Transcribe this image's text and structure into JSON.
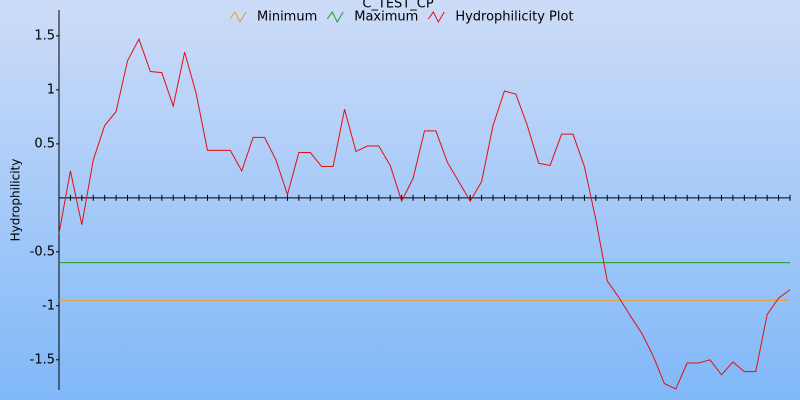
{
  "chart_data": {
    "type": "line",
    "title": "C_TEST_CP",
    "ylabel": "Hydrophilicity",
    "ylim": [
      -1.78,
      1.74
    ],
    "yticks": [
      -1.5,
      -1,
      -0.5,
      0.5,
      1,
      1.5
    ],
    "series": [
      {
        "name": "Minimum",
        "color": "#e8a030",
        "level": -0.95
      },
      {
        "name": "Maximum",
        "color": "#20a020",
        "level": -0.6
      },
      {
        "name": "Hydrophilicity Plot",
        "color": "#e01010",
        "values": [
          -0.33,
          0.25,
          -0.25,
          0.35,
          0.67,
          0.8,
          1.27,
          1.47,
          1.17,
          1.16,
          0.85,
          1.35,
          0.97,
          0.44,
          0.44,
          0.44,
          0.25,
          0.56,
          0.56,
          0.35,
          0.03,
          0.42,
          0.42,
          0.29,
          0.29,
          0.82,
          0.43,
          0.48,
          0.48,
          0.3,
          -0.03,
          0.18,
          0.62,
          0.62,
          0.33,
          0.15,
          -0.03,
          0.15,
          0.67,
          0.99,
          0.96,
          0.67,
          0.32,
          0.3,
          0.59,
          0.59,
          0.29,
          -0.2,
          -0.77,
          -0.92,
          -1.09,
          -1.25,
          -1.46,
          -1.72,
          -1.77,
          -1.53,
          -1.53,
          -1.5,
          -1.64,
          -1.52,
          -1.61,
          -1.61,
          -1.08,
          -0.93,
          -0.85
        ]
      }
    ]
  }
}
